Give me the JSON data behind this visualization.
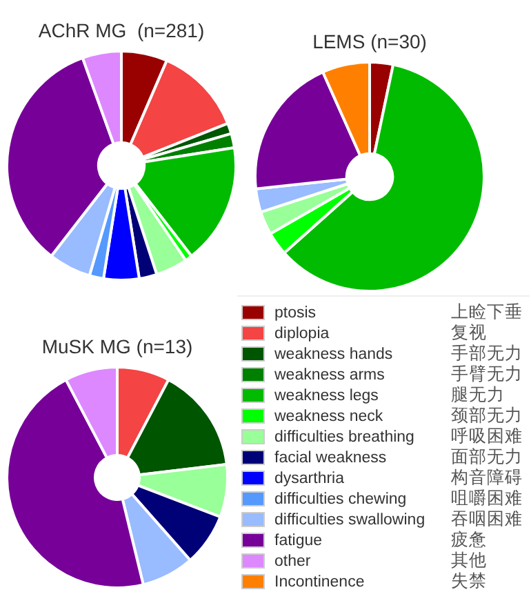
{
  "chart_data": {
    "type": "donut",
    "categories": [
      "ptosis",
      "diplopia",
      "weakness hands",
      "weakness arms",
      "weakness legs",
      "weakness neck",
      "difficulties breathing",
      "facial weakness",
      "dysarthria",
      "difficulties chewing",
      "difficulties swallowing",
      "fatigue",
      "other",
      "Incontinence"
    ],
    "colors": [
      "#990000",
      "#f44444",
      "#005500",
      "#008000",
      "#00bb00",
      "#00ff00",
      "#99ff99",
      "#000077",
      "#0000ff",
      "#5599ff",
      "#99bbff",
      "#770099",
      "#dd88ff",
      "#ff8000"
    ],
    "series": [
      {
        "name": "AChR MG  (n=281)",
        "values": [
          6.5,
          12.5,
          1.5,
          2,
          17,
          1,
          4.5,
          2.5,
          5,
          2,
          6,
          34,
          5.5,
          0
        ]
      },
      {
        "name": "LEMS (n=30)",
        "values": [
          3.3,
          0,
          0,
          0,
          60.1,
          3.3,
          3.3,
          0,
          0,
          0,
          3.3,
          20,
          0,
          6.7
        ]
      },
      {
        "name": "MuSK MG (n=13)",
        "values": [
          0,
          7.7,
          15.4,
          0,
          0,
          0,
          7.7,
          7.7,
          0,
          0,
          7.7,
          46.1,
          7.7,
          0
        ]
      }
    ],
    "legend": "bottom right",
    "annotations": [
      "上睑下垂",
      "复视",
      "手部无力",
      "手臂无力",
      "腿无力",
      "颈部无力",
      "呼吸困难",
      "面部无力",
      "构音障碍",
      "咀嚼困难",
      "吞咽困难",
      "疲惫",
      "其他",
      "失禁"
    ]
  }
}
